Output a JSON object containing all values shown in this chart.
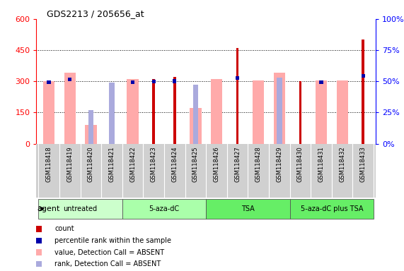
{
  "title": "GDS2213 / 205656_at",
  "samples": [
    "GSM118418",
    "GSM118419",
    "GSM118420",
    "GSM118421",
    "GSM118422",
    "GSM118423",
    "GSM118424",
    "GSM118425",
    "GSM118426",
    "GSM118427",
    "GSM118428",
    "GSM118429",
    "GSM118430",
    "GSM118431",
    "GSM118432",
    "GSM118433"
  ],
  "groups": [
    {
      "label": "untreated",
      "indices": [
        0,
        1,
        2,
        3
      ],
      "color": "#ccffcc"
    },
    {
      "label": "5-aza-dC",
      "indices": [
        4,
        5,
        6,
        7
      ],
      "color": "#aaffaa"
    },
    {
      "label": "TSA",
      "indices": [
        8,
        9,
        10,
        11
      ],
      "color": "#55dd55"
    },
    {
      "label": "5-aza-dC plus TSA",
      "indices": [
        12,
        13,
        14,
        15
      ],
      "color": "#55dd55"
    }
  ],
  "count_values": [
    null,
    null,
    null,
    null,
    null,
    310,
    320,
    null,
    null,
    460,
    null,
    null,
    300,
    null,
    null,
    500
  ],
  "count_absent": [
    300,
    340,
    90,
    null,
    310,
    null,
    null,
    170,
    310,
    null,
    305,
    340,
    null,
    305,
    305,
    null
  ],
  "percentile_values": [
    305,
    318,
    null,
    null,
    305,
    308,
    310,
    null,
    null,
    325,
    null,
    null,
    null,
    305,
    null,
    335
  ],
  "percentile_absent": [
    null,
    null,
    160,
    293,
    null,
    null,
    null,
    283,
    null,
    null,
    null,
    318,
    null,
    null,
    null,
    null
  ],
  "left_ylim": [
    0,
    600
  ],
  "left_yticks": [
    0,
    150,
    300,
    450,
    600
  ],
  "right_ylim": [
    0,
    100
  ],
  "right_yticks": [
    0,
    25,
    50,
    75,
    100
  ],
  "count_color": "#cc0000",
  "count_absent_color": "#ffaaaa",
  "percentile_color": "#0000aa",
  "percentile_absent_color": "#aaaadd",
  "agent_label": "agent"
}
